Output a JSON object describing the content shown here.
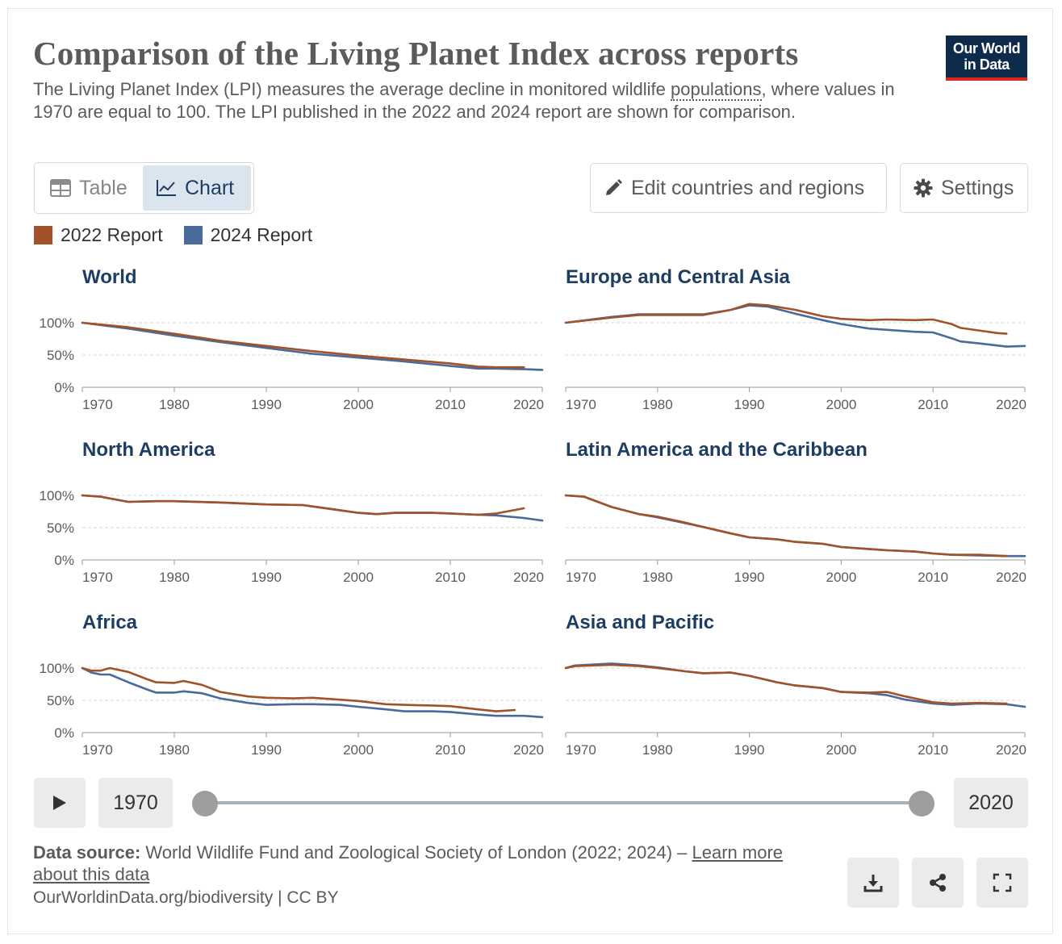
{
  "header": {
    "title": "Comparison of the Living Planet Index across reports",
    "subtitle_a": "The Living Planet Index (LPI) measures the average decline in monitored wildlife ",
    "subtitle_link": "populations",
    "subtitle_b": ", where values in 1970 are equal to 100. The LPI published in the 2022 and 2024 report are shown for comparison."
  },
  "logo": {
    "line1": "Our World",
    "line2": "in Data"
  },
  "tabs": {
    "table": "Table",
    "chart": "Chart"
  },
  "buttons": {
    "edit": "Edit countries and regions",
    "settings": "Settings"
  },
  "legend": [
    {
      "label": "2022 Report",
      "color": "#a2522a"
    },
    {
      "label": "2024 Report",
      "color": "#4a6a9a"
    }
  ],
  "timeline": {
    "start": "1970",
    "end": "2020"
  },
  "footer": {
    "source_label": "Data source:",
    "source_text": " World Wildlife Fund and Zoological Society of London (2022; 2024) – ",
    "source_link": "Learn more about this data",
    "origin": "OurWorldinData.org/biodiversity | CC BY"
  },
  "icons": {
    "table": "table-icon",
    "chart": "line-chart-icon",
    "edit": "pencil-icon",
    "settings": "gear-icon",
    "play": "play-icon",
    "download": "download-icon",
    "share": "share-icon",
    "fullscreen": "fullscreen-icon"
  },
  "chart_data": {
    "type": "line",
    "y_ticks": [
      "0%",
      "50%",
      "100%"
    ],
    "x_ticks": [
      "1970",
      "1980",
      "1990",
      "2000",
      "2010",
      "2020"
    ],
    "xlim": [
      1970,
      2020
    ],
    "ylim": [
      0,
      100
    ],
    "grid": true,
    "legend_position": "top-left",
    "series_colors": {
      "2022 Report": "#a2522a",
      "2024 Report": "#4a6a9a"
    },
    "panels": [
      {
        "title": "World",
        "series": [
          {
            "name": "2022 Report",
            "x": [
              1970,
              1975,
              1980,
              1985,
              1990,
              1995,
              2000,
              2005,
              2010,
              2013,
              2015,
              2018
            ],
            "y": [
              100,
              93,
              83,
              72,
              64,
              56,
              49,
              43,
              37,
              32,
              31,
              31
            ]
          },
          {
            "name": "2024 Report",
            "x": [
              1970,
              1975,
              1980,
              1985,
              1990,
              1995,
              2000,
              2005,
              2010,
              2013,
              2015,
              2018,
              2020
            ],
            "y": [
              100,
              91,
              80,
              70,
              61,
              52,
              46,
              40,
              33,
              29,
              29,
              28,
              27
            ]
          }
        ]
      },
      {
        "title": "Europe and Central Asia",
        "series": [
          {
            "name": "2022 Report",
            "x": [
              1970,
              1975,
              1978,
              1982,
              1985,
              1988,
              1990,
              1992,
              1995,
              1998,
              2000,
              2003,
              2005,
              2008,
              2010,
              2012,
              2013,
              2015,
              2017,
              2018
            ],
            "y": [
              100,
              108,
              112,
              112,
              112,
              120,
              129,
              127,
              120,
              110,
              106,
              104,
              105,
              104,
              105,
              98,
              92,
              88,
              84,
              83
            ]
          },
          {
            "name": "2024 Report",
            "x": [
              1970,
              1975,
              1978,
              1982,
              1985,
              1988,
              1990,
              1992,
              1995,
              1998,
              2000,
              2003,
              2005,
              2008,
              2010,
              2012,
              2013,
              2015,
              2018,
              2020
            ],
            "y": [
              100,
              109,
              113,
              113,
              113,
              120,
              127,
              125,
              114,
              104,
              98,
              91,
              89,
              86,
              85,
              76,
              71,
              68,
              63,
              64
            ]
          }
        ]
      },
      {
        "title": "North America",
        "series": [
          {
            "name": "2022 Report",
            "x": [
              1970,
              1972,
              1975,
              1978,
              1980,
              1985,
              1990,
              1994,
              1997,
              2000,
              2002,
              2004,
              2008,
              2010,
              2013,
              2015,
              2018
            ],
            "y": [
              100,
              98,
              90,
              91,
              91,
              89,
              86,
              85,
              79,
              73,
              71,
              73,
              73,
              72,
              70,
              72,
              80
            ]
          },
          {
            "name": "2024 Report",
            "x": [
              1970,
              1972,
              1975,
              1978,
              1980,
              1985,
              1990,
              1994,
              1997,
              2000,
              2002,
              2004,
              2008,
              2010,
              2013,
              2015,
              2018,
              2020
            ],
            "y": [
              100,
              98,
              90,
              91,
              91,
              89,
              86,
              85,
              79,
              73,
              71,
              73,
              73,
              72,
              70,
              69,
              65,
              61
            ]
          }
        ]
      },
      {
        "title": "Latin America and the Caribbean",
        "series": [
          {
            "name": "2022 Report",
            "x": [
              1970,
              1972,
              1975,
              1978,
              1980,
              1983,
              1985,
              1988,
              1990,
              1993,
              1995,
              1998,
              2000,
              2003,
              2005,
              2008,
              2010,
              2012,
              2015,
              2018
            ],
            "y": [
              100,
              98,
              82,
              71,
              67,
              58,
              51,
              41,
              35,
              32,
              28,
              25,
              20,
              17,
              15,
              13,
              10,
              8,
              8,
              6
            ]
          },
          {
            "name": "2024 Report",
            "x": [
              1970,
              1972,
              1975,
              1978,
              1980,
              1983,
              1985,
              1988,
              1990,
              1993,
              1995,
              1998,
              2000,
              2003,
              2005,
              2008,
              2010,
              2012,
              2015,
              2018,
              2020
            ],
            "y": [
              100,
              98,
              82,
              71,
              66,
              57,
              51,
              41,
              35,
              32,
              28,
              25,
              20,
              17,
              15,
              13,
              10,
              8,
              7,
              6,
              6
            ]
          }
        ]
      },
      {
        "title": "Africa",
        "series": [
          {
            "name": "2022 Report",
            "x": [
              1970,
              1971,
              1972,
              1973,
              1975,
              1977,
              1978,
              1980,
              1981,
              1983,
              1985,
              1988,
              1990,
              1993,
              1995,
              1998,
              2000,
              2003,
              2005,
              2008,
              2010,
              2013,
              2015,
              2017
            ],
            "y": [
              100,
              96,
              96,
              100,
              94,
              83,
              78,
              77,
              80,
              74,
              63,
              56,
              54,
              53,
              54,
              51,
              49,
              44,
              43,
              42,
              41,
              36,
              33,
              35
            ]
          },
          {
            "name": "2024 Report",
            "x": [
              1970,
              1971,
              1972,
              1973,
              1975,
              1977,
              1978,
              1980,
              1981,
              1983,
              1985,
              1988,
              1990,
              1993,
              1995,
              1998,
              2000,
              2003,
              2005,
              2008,
              2010,
              2013,
              2015,
              2018,
              2020
            ],
            "y": [
              100,
              93,
              90,
              90,
              78,
              67,
              62,
              62,
              64,
              61,
              53,
              46,
              43,
              44,
              44,
              43,
              40,
              36,
              33,
              33,
              32,
              28,
              26,
              26,
              24
            ]
          }
        ]
      },
      {
        "title": "Asia and Pacific",
        "series": [
          {
            "name": "2022 Report",
            "x": [
              1970,
              1971,
              1975,
              1978,
              1980,
              1983,
              1985,
              1988,
              1990,
              1993,
              1995,
              1998,
              2000,
              2003,
              2005,
              2007,
              2010,
              2012,
              2015,
              2018
            ],
            "y": [
              100,
              103,
              105,
              103,
              100,
              95,
              92,
              93,
              88,
              78,
              73,
              69,
              63,
              62,
              63,
              56,
              47,
              45,
              46,
              45
            ]
          },
          {
            "name": "2024 Report",
            "x": [
              1970,
              1971,
              1975,
              1978,
              1980,
              1983,
              1985,
              1988,
              1990,
              1993,
              1995,
              1998,
              2000,
              2003,
              2005,
              2007,
              2010,
              2012,
              2015,
              2018,
              2020
            ],
            "y": [
              100,
              104,
              107,
              104,
              101,
              95,
              92,
              93,
              88,
              78,
              73,
              69,
              63,
              61,
              58,
              51,
              45,
              43,
              45,
              44,
              40
            ]
          }
        ]
      }
    ]
  }
}
